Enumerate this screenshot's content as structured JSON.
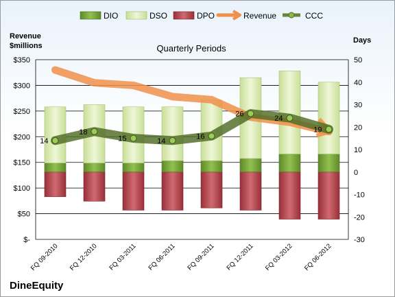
{
  "chart_data": {
    "type": "bar",
    "title": "Quarterly Periods",
    "company": "DineEquity",
    "left_axis_label_line1": "Revenue",
    "left_axis_label_line2": "$millions",
    "right_axis_label": "Days",
    "categories": [
      "FQ 09-2010",
      "FQ 12-2010",
      "FQ 03-2011",
      "FQ 06-2011",
      "FQ 09-2011",
      "FQ 12-2011",
      "FQ 03-2012",
      "FQ 06-2012"
    ],
    "left_ylim": [
      0,
      350
    ],
    "left_ticks": [
      "$-",
      "$50",
      "$100",
      "$150",
      "$200",
      "$250",
      "$300",
      "$350"
    ],
    "right_ylim": [
      -30,
      50
    ],
    "right_ticks": [
      "-30",
      "-20",
      "-10",
      "0",
      "10",
      "20",
      "30",
      "40",
      "50"
    ],
    "legend": [
      "DIO",
      "DSO",
      "DPO",
      "Revenue",
      "CCC"
    ],
    "series": [
      {
        "name": "DIO",
        "axis": "days",
        "color": "#7aa33c",
        "values": [
          4,
          4,
          4,
          5,
          5,
          6,
          8,
          8
        ]
      },
      {
        "name": "DSO",
        "axis": "days",
        "color": "#d9eab0",
        "values": [
          25,
          26,
          25,
          24,
          27,
          36,
          37,
          32
        ]
      },
      {
        "name": "DPO",
        "axis": "days",
        "color": "#b8454f",
        "values": [
          -11,
          -13,
          -17,
          -17,
          -16,
          -17,
          -21,
          -21
        ]
      },
      {
        "name": "Revenue",
        "axis": "revenue",
        "color": "#f0904a",
        "values": [
          330,
          305,
          300,
          278,
          272,
          238,
          228,
          210
        ]
      },
      {
        "name": "CCC",
        "axis": "days",
        "color": "#5a7a2a",
        "values": [
          14,
          18,
          15,
          14,
          16,
          26,
          24,
          19
        ]
      }
    ],
    "ccc_labels": [
      "14",
      "18",
      "15",
      "14",
      "16",
      "26",
      "24",
      "19"
    ]
  }
}
